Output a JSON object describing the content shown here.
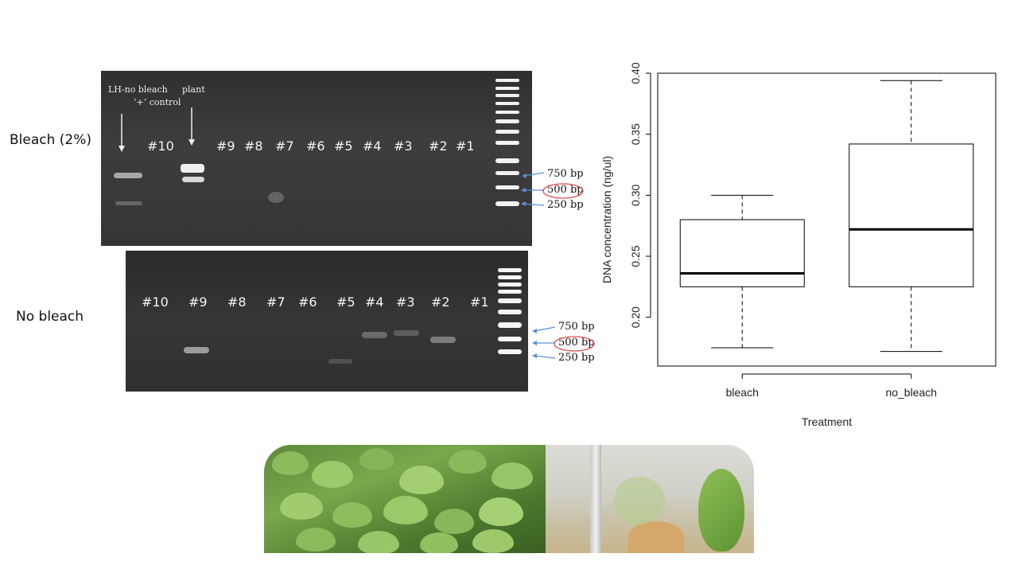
{
  "rows": {
    "bleach_label": "Bleach (2%)",
    "no_bleach_label": "No bleach"
  },
  "gel_top": {
    "annotations": {
      "control_line1": "LH-no bleach",
      "control_line2": "‘+’ control",
      "plant": "plant"
    },
    "lanes": [
      "#10",
      "#9",
      "#8",
      "#7",
      "#6",
      "#5",
      "#4",
      "#3",
      "#2",
      "#1"
    ],
    "markers": [
      "750 bp",
      "500 bp",
      "250 bp"
    ]
  },
  "gel_bottom": {
    "lanes": [
      "#10",
      "#9",
      "#8",
      "#7",
      "#6",
      "#5",
      "#4",
      "#3",
      "#2",
      "#1"
    ],
    "markers": [
      "750 bp",
      "500 bp",
      "250 bp"
    ]
  },
  "colors": {
    "marker_arrow": "#5b8fd6",
    "circle": "#d9534f",
    "gel_band": "#f2f2f2"
  },
  "chart_data": {
    "type": "boxplot",
    "xlabel": "Treatment",
    "ylabel": "DNA concentration (ng/ul)",
    "categories": [
      "bleach",
      "no_bleach"
    ],
    "ylim": [
      0.16,
      0.4
    ],
    "yticks": [
      0.2,
      0.25,
      0.3,
      0.35,
      0.4
    ],
    "ytick_labels": [
      "0.20",
      "0.25",
      "0.30",
      "0.35",
      "0.40"
    ],
    "boxes": [
      {
        "category": "bleach",
        "whisker_low": 0.175,
        "q1": 0.225,
        "median": 0.236,
        "q3": 0.28,
        "whisker_high": 0.3
      },
      {
        "category": "no_bleach",
        "whisker_low": 0.172,
        "q1": 0.225,
        "median": 0.272,
        "q3": 0.342,
        "whisker_high": 0.394
      }
    ]
  }
}
